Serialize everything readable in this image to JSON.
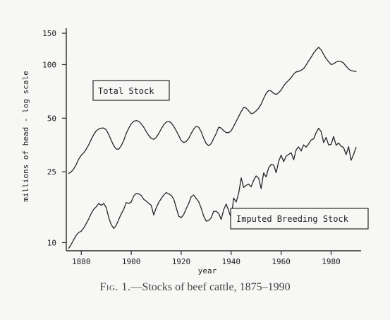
{
  "chart_data": {
    "type": "line",
    "title": "",
    "xlabel": "year",
    "ylabel": "millions of head - log scale",
    "yscale": "log",
    "xlim": [
      1874,
      1992
    ],
    "ylim": [
      9,
      160
    ],
    "x_ticks": [
      1880,
      1900,
      1920,
      1940,
      1960,
      1980
    ],
    "y_ticks": [
      10,
      25,
      50,
      100,
      150
    ],
    "grid": false,
    "legend": "inline boxed labels",
    "annotations": [
      "Total Stock",
      "Imputed Breeding Stock"
    ],
    "series": [
      {
        "name": "Total Stock",
        "x": [
          1875,
          1876,
          1877,
          1878,
          1879,
          1880,
          1881,
          1882,
          1883,
          1884,
          1885,
          1886,
          1887,
          1888,
          1889,
          1890,
          1891,
          1892,
          1893,
          1894,
          1895,
          1896,
          1897,
          1898,
          1899,
          1900,
          1901,
          1902,
          1903,
          1904,
          1905,
          1906,
          1907,
          1908,
          1909,
          1910,
          1911,
          1912,
          1913,
          1914,
          1915,
          1916,
          1917,
          1918,
          1919,
          1920,
          1921,
          1922,
          1923,
          1924,
          1925,
          1926,
          1927,
          1928,
          1929,
          1930,
          1931,
          1932,
          1933,
          1934,
          1935,
          1936,
          1937,
          1938,
          1939,
          1940,
          1941,
          1942,
          1943,
          1944,
          1945,
          1946,
          1947,
          1948,
          1949,
          1950,
          1951,
          1952,
          1953,
          1954,
          1955,
          1956,
          1957,
          1958,
          1959,
          1960,
          1961,
          1962,
          1963,
          1964,
          1965,
          1966,
          1967,
          1968,
          1969,
          1970,
          1971,
          1972,
          1973,
          1974,
          1975,
          1976,
          1977,
          1978,
          1979,
          1980,
          1981,
          1982,
          1983,
          1984,
          1985,
          1986,
          1987,
          1988,
          1989,
          1990
        ],
        "values": [
          24.5,
          25,
          26,
          27.5,
          29.5,
          31,
          32,
          33.5,
          35.5,
          38,
          40.5,
          42.5,
          43.5,
          44,
          44,
          43,
          40.5,
          37.5,
          35,
          33.5,
          33.5,
          35,
          37.5,
          41,
          44,
          46.5,
          48,
          48.5,
          48,
          46.5,
          44.5,
          42,
          40,
          38.5,
          38,
          39,
          41,
          43.5,
          46,
          47.5,
          48,
          47,
          45,
          42.5,
          40,
          37.5,
          36.5,
          37,
          38.5,
          41,
          43.5,
          45,
          44.5,
          42,
          38.5,
          36,
          35,
          36,
          38.5,
          41,
          44.5,
          44,
          42.5,
          41.5,
          41.5,
          42.5,
          45,
          48,
          51,
          54.5,
          57.5,
          57,
          55,
          53,
          53.5,
          55,
          57,
          60,
          64.5,
          69,
          71.5,
          71,
          69,
          68,
          69.5,
          72,
          76,
          79,
          81.5,
          84.5,
          88.5,
          91,
          91.5,
          93,
          95,
          99.5,
          105,
          110,
          116,
          121,
          125,
          121,
          114,
          108,
          104,
          100,
          101,
          103.5,
          104.5,
          104,
          102,
          98,
          94.5,
          92.5,
          92,
          91.5
        ],
        "color": "#262626"
      },
      {
        "name": "Imputed Breeding Stock",
        "x": [
          1875,
          1876,
          1877,
          1878,
          1879,
          1880,
          1881,
          1882,
          1883,
          1884,
          1885,
          1886,
          1887,
          1888,
          1889,
          1890,
          1891,
          1892,
          1893,
          1894,
          1895,
          1896,
          1897,
          1898,
          1899,
          1900,
          1901,
          1902,
          1903,
          1904,
          1905,
          1906,
          1907,
          1908,
          1909,
          1910,
          1911,
          1912,
          1913,
          1914,
          1915,
          1916,
          1917,
          1918,
          1919,
          1920,
          1921,
          1922,
          1923,
          1924,
          1925,
          1926,
          1927,
          1928,
          1929,
          1930,
          1931,
          1932,
          1933,
          1934,
          1935,
          1936,
          1937,
          1938,
          1939,
          1940,
          1941,
          1942,
          1943,
          1944,
          1945,
          1946,
          1947,
          1948,
          1949,
          1950,
          1951,
          1952,
          1953,
          1954,
          1955,
          1956,
          1957,
          1958,
          1959,
          1960,
          1961,
          1962,
          1963,
          1964,
          1965,
          1966,
          1967,
          1968,
          1969,
          1970,
          1971,
          1972,
          1973,
          1974,
          1975,
          1976,
          1977,
          1978,
          1979,
          1980,
          1981,
          1982,
          1983,
          1984,
          1985,
          1986,
          1987,
          1988,
          1989,
          1990
        ],
        "values": [
          9.3,
          9.8,
          10.4,
          11,
          11.4,
          11.6,
          12.1,
          12.8,
          13.6,
          14.6,
          15.4,
          15.9,
          16.6,
          16.2,
          16.6,
          15.7,
          13.8,
          12.6,
          12,
          12.5,
          13.5,
          14.5,
          15.4,
          16.8,
          16.6,
          16.9,
          18.3,
          18.9,
          18.8,
          18.4,
          17.5,
          17.1,
          16.6,
          16.2,
          14.3,
          15.7,
          16.8,
          17.7,
          18.5,
          19.1,
          18.8,
          18.4,
          17.6,
          15.7,
          14.1,
          13.8,
          14.4,
          15.5,
          16.6,
          18.1,
          18.5,
          17.7,
          17,
          15.6,
          14.1,
          13.2,
          13.3,
          13.8,
          15,
          15,
          14.6,
          13.5,
          15.3,
          16.5,
          15.1,
          13.7,
          17.8,
          16.9,
          18.9,
          23.1,
          20.4,
          21,
          21.3,
          20.6,
          22.4,
          23.7,
          23,
          20.1,
          24.6,
          23.4,
          26.3,
          27.5,
          27.3,
          24.7,
          28.6,
          31,
          28.5,
          30.6,
          31.3,
          32,
          29.2,
          33.2,
          34.5,
          32.7,
          35.4,
          34.4,
          35.9,
          37.7,
          38.3,
          41.4,
          43.9,
          42.1,
          36.5,
          39,
          35.4,
          35.6,
          39.5,
          35.2,
          36.3,
          34.8,
          34.2,
          31.2,
          34.6,
          29,
          31.3,
          34.3
        ],
        "color": "#262626"
      }
    ]
  },
  "caption": {
    "prefix": "Fig. 1.",
    "text": "—Stocks of beef cattle, 1875–1990"
  }
}
